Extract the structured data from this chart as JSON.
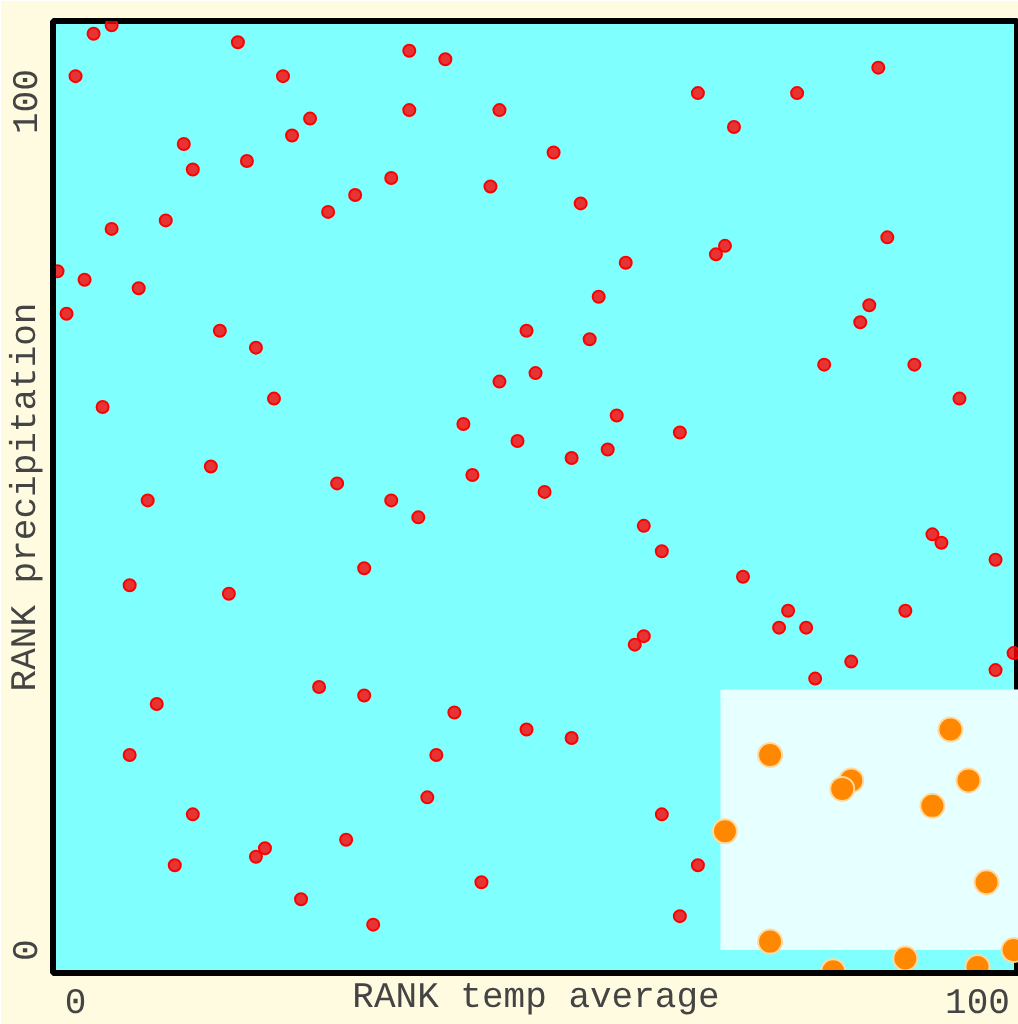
{
  "chart_data": {
    "type": "scatter",
    "xlabel": "RANK temp average",
    "ylabel": "RANK precipitation",
    "xlim": [
      -2.5,
      104.6
    ],
    "ylim": [
      -2.7,
      109.5
    ],
    "xticks": [
      0,
      100
    ],
    "yticks": [
      0,
      100
    ],
    "grid": false,
    "series": [
      {
        "type": "area",
        "color": "#e6ffff",
        "x": [
          71.5,
          104.6
        ],
        "values": [
          30.7,
          30.7
        ]
      },
      {
        "color": "#ff0000",
        "marker": "circle",
        "x": [
          2,
          4,
          0,
          18,
          23,
          26,
          24,
          12,
          13,
          19,
          31,
          28,
          4,
          10,
          -2,
          1,
          7,
          -1,
          16,
          20,
          22,
          3,
          15,
          29,
          8,
          37,
          41,
          37,
          47,
          69,
          53,
          35,
          46,
          56,
          61,
          58,
          50,
          57,
          51,
          47,
          60,
          67,
          43,
          49,
          55,
          59,
          44,
          52,
          35,
          89,
          80,
          73,
          90,
          72,
          71,
          88,
          87,
          83,
          93,
          98,
          32,
          6,
          17,
          27,
          32,
          9,
          6,
          13,
          30,
          21,
          20,
          11,
          25,
          33,
          38,
          63,
          65,
          63,
          62,
          42,
          50,
          55,
          40,
          39,
          65,
          69,
          67,
          45,
          95,
          96,
          102,
          74,
          79,
          78,
          81,
          92,
          104,
          86,
          82,
          102
        ],
        "values": [
          108,
          109,
          103,
          107,
          103,
          98,
          96,
          95,
          92,
          93,
          89,
          87,
          85,
          86,
          80,
          79,
          78,
          75,
          73,
          71,
          65,
          64,
          57,
          55,
          53,
          106,
          105,
          99,
          99,
          101,
          94,
          91,
          90,
          88,
          81,
          77,
          73,
          72,
          68,
          67,
          63,
          61,
          62,
          60,
          58,
          59,
          56,
          54,
          53,
          104,
          101,
          97,
          84,
          83,
          82,
          76,
          74,
          69,
          69,
          65,
          45,
          43,
          42,
          31,
          30,
          29,
          23,
          16,
          13,
          12,
          11,
          10,
          6,
          3,
          51,
          50,
          47,
          37,
          36,
          28,
          26,
          25,
          23,
          18,
          16,
          10,
          4,
          8,
          49,
          48,
          46,
          44,
          40,
          38,
          38,
          40,
          35,
          34,
          32,
          33
        ]
      },
      {
        "type": "bubble",
        "color": "#ff8800",
        "marker": "circle",
        "x": [
          97,
          77,
          86,
          85,
          99,
          95,
          72,
          101,
          77,
          92,
          100,
          104,
          84
        ],
        "values": [
          26,
          23,
          20,
          19,
          20,
          17,
          14,
          8,
          1,
          -1,
          -2,
          0,
          -2.5
        ],
        "sizes": [
          1,
          1,
          1,
          1,
          1,
          1,
          1,
          1,
          1,
          1,
          1,
          1,
          1
        ]
      }
    ]
  }
}
